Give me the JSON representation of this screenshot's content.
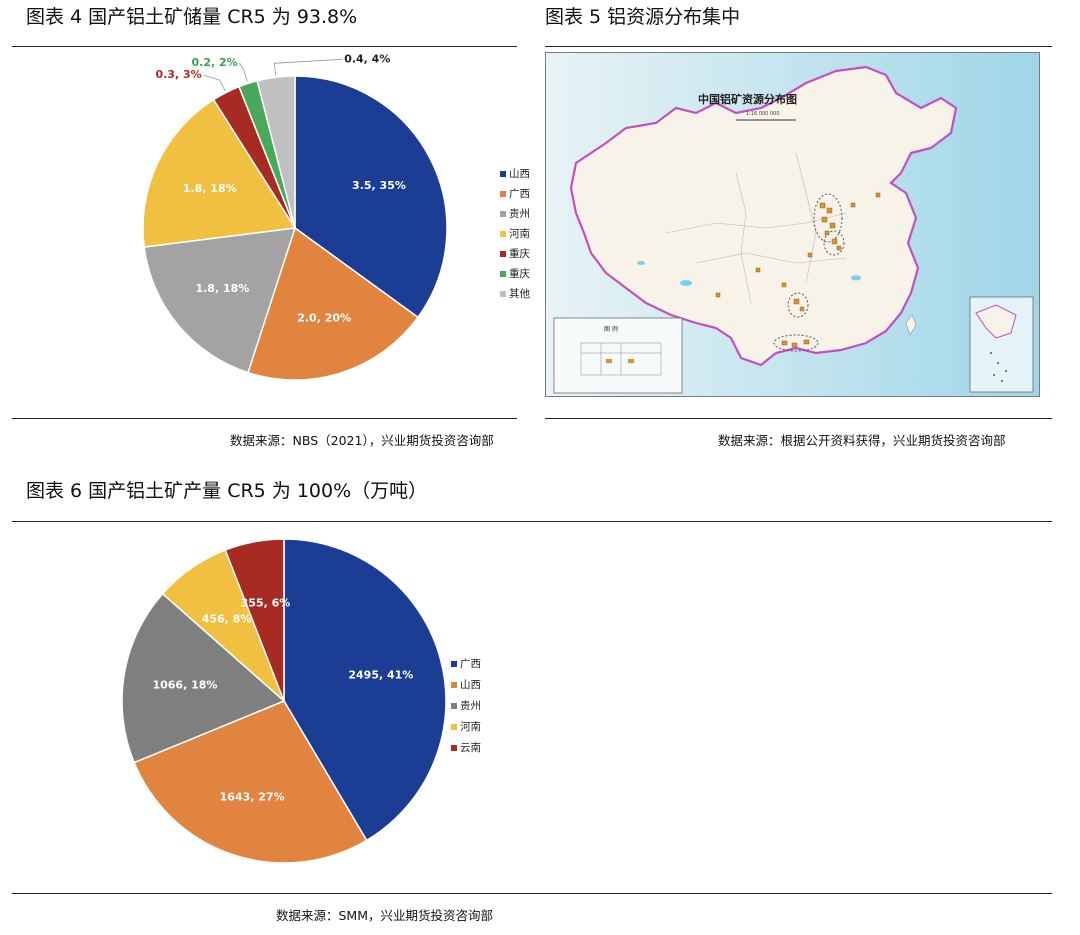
{
  "figure4": {
    "title": "图表  4  国产铝土矿储量 CR5 为 93.8%",
    "source": "数据来源：NBS（2021），兴业期货投资咨询部"
  },
  "figure5": {
    "title": "图表  5  铝资源分布集中",
    "source": "数据来源：根据公开资料获得，兴业期货投资咨询部",
    "map": {
      "heading": "中国铝矿资源分布图",
      "scale_text": "1:16 000 000",
      "legend_title": "图 例"
    }
  },
  "figure6": {
    "title": "图表  6  国产铝土矿产量 CR5 为 100%（万吨）",
    "source": "数据来源：SMM，兴业期货投资咨询部"
  },
  "chart_data": [
    {
      "type": "pie",
      "title": "图表  4  国产铝土矿储量 CR5 为 93.8%",
      "categories": [
        "山西",
        "广西",
        "贵州",
        "河南",
        "重庆",
        "重庆",
        "其他"
      ],
      "values": [
        3.5,
        2.0,
        1.8,
        1.8,
        0.3,
        0.2,
        0.4
      ],
      "labels": [
        "3.5, 35%",
        "2.0, 20%",
        "1.8, 18%",
        "1.8, 18%",
        "0.3, 3%",
        "0.2, 2%",
        "0.4, 4%"
      ],
      "colors": [
        "#1b3d93",
        "#e0843f",
        "#a3a3a3",
        "#f2c040",
        "#a82b23",
        "#4aa85a",
        "#c0c0c0"
      ],
      "label_colors": [
        "#ffffff",
        "#ffffff",
        "#ffffff",
        "#ffffff",
        "#b02a22",
        "#3aa04f",
        "#222222"
      ],
      "legend_position": "right"
    },
    {
      "type": "pie",
      "title": "图表  6  国产铝土矿产量 CR5 为 100%（万吨）",
      "categories": [
        "广西",
        "山西",
        "贵州",
        "河南",
        "云南"
      ],
      "values": [
        2495,
        1643,
        1066,
        456,
        355
      ],
      "labels": [
        "2495, 41%",
        "1643, 27%",
        "1066, 18%",
        "456, 8%",
        "355, 6%"
      ],
      "colors": [
        "#1b3d93",
        "#e0843f",
        "#7f7f7f",
        "#f2c040",
        "#a82b23"
      ],
      "label_colors": [
        "#ffffff",
        "#ffffff",
        "#ffffff",
        "#ffffff",
        "#ffffff"
      ],
      "legend_position": "right"
    }
  ]
}
